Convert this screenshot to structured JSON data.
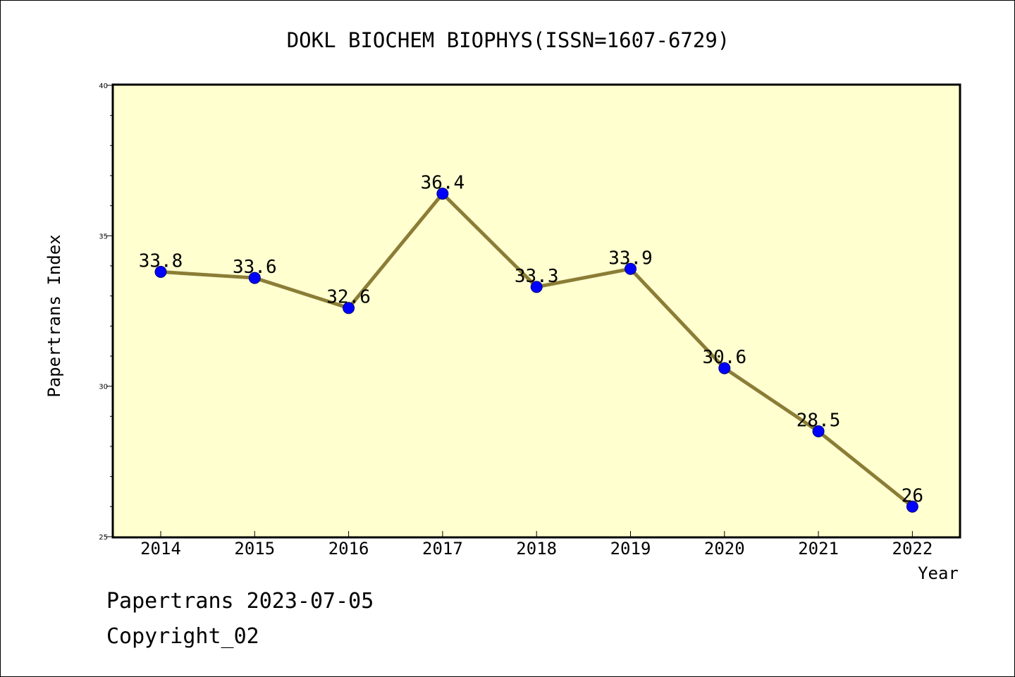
{
  "chart_data": {
    "type": "line",
    "title": "DOKL BIOCHEM BIOPHYS(ISSN=1607-6729)",
    "xlabel": "Year",
    "ylabel": "Papertrans Index",
    "categories": [
      "2014",
      "2015",
      "2016",
      "2017",
      "2018",
      "2019",
      "2020",
      "2021",
      "2022"
    ],
    "values": [
      33.8,
      33.6,
      32.6,
      36.4,
      33.3,
      33.9,
      30.6,
      28.5,
      26
    ],
    "data_labels": [
      "33.8",
      "33.6",
      "32.6",
      "36.4",
      "33.3",
      "33.9",
      "30.6",
      "28.5",
      "26"
    ],
    "ylim": [
      25,
      40
    ],
    "yticks": [
      "25",
      "30",
      "35",
      "40"
    ],
    "grid": false,
    "colors": {
      "line": "#8b7d36",
      "marker": "#0000ff",
      "plot_background": "#ffffd0",
      "axes": "#000000"
    }
  },
  "footer": {
    "line1": "Papertrans 2023-07-05",
    "line2": "Copyright_02"
  }
}
